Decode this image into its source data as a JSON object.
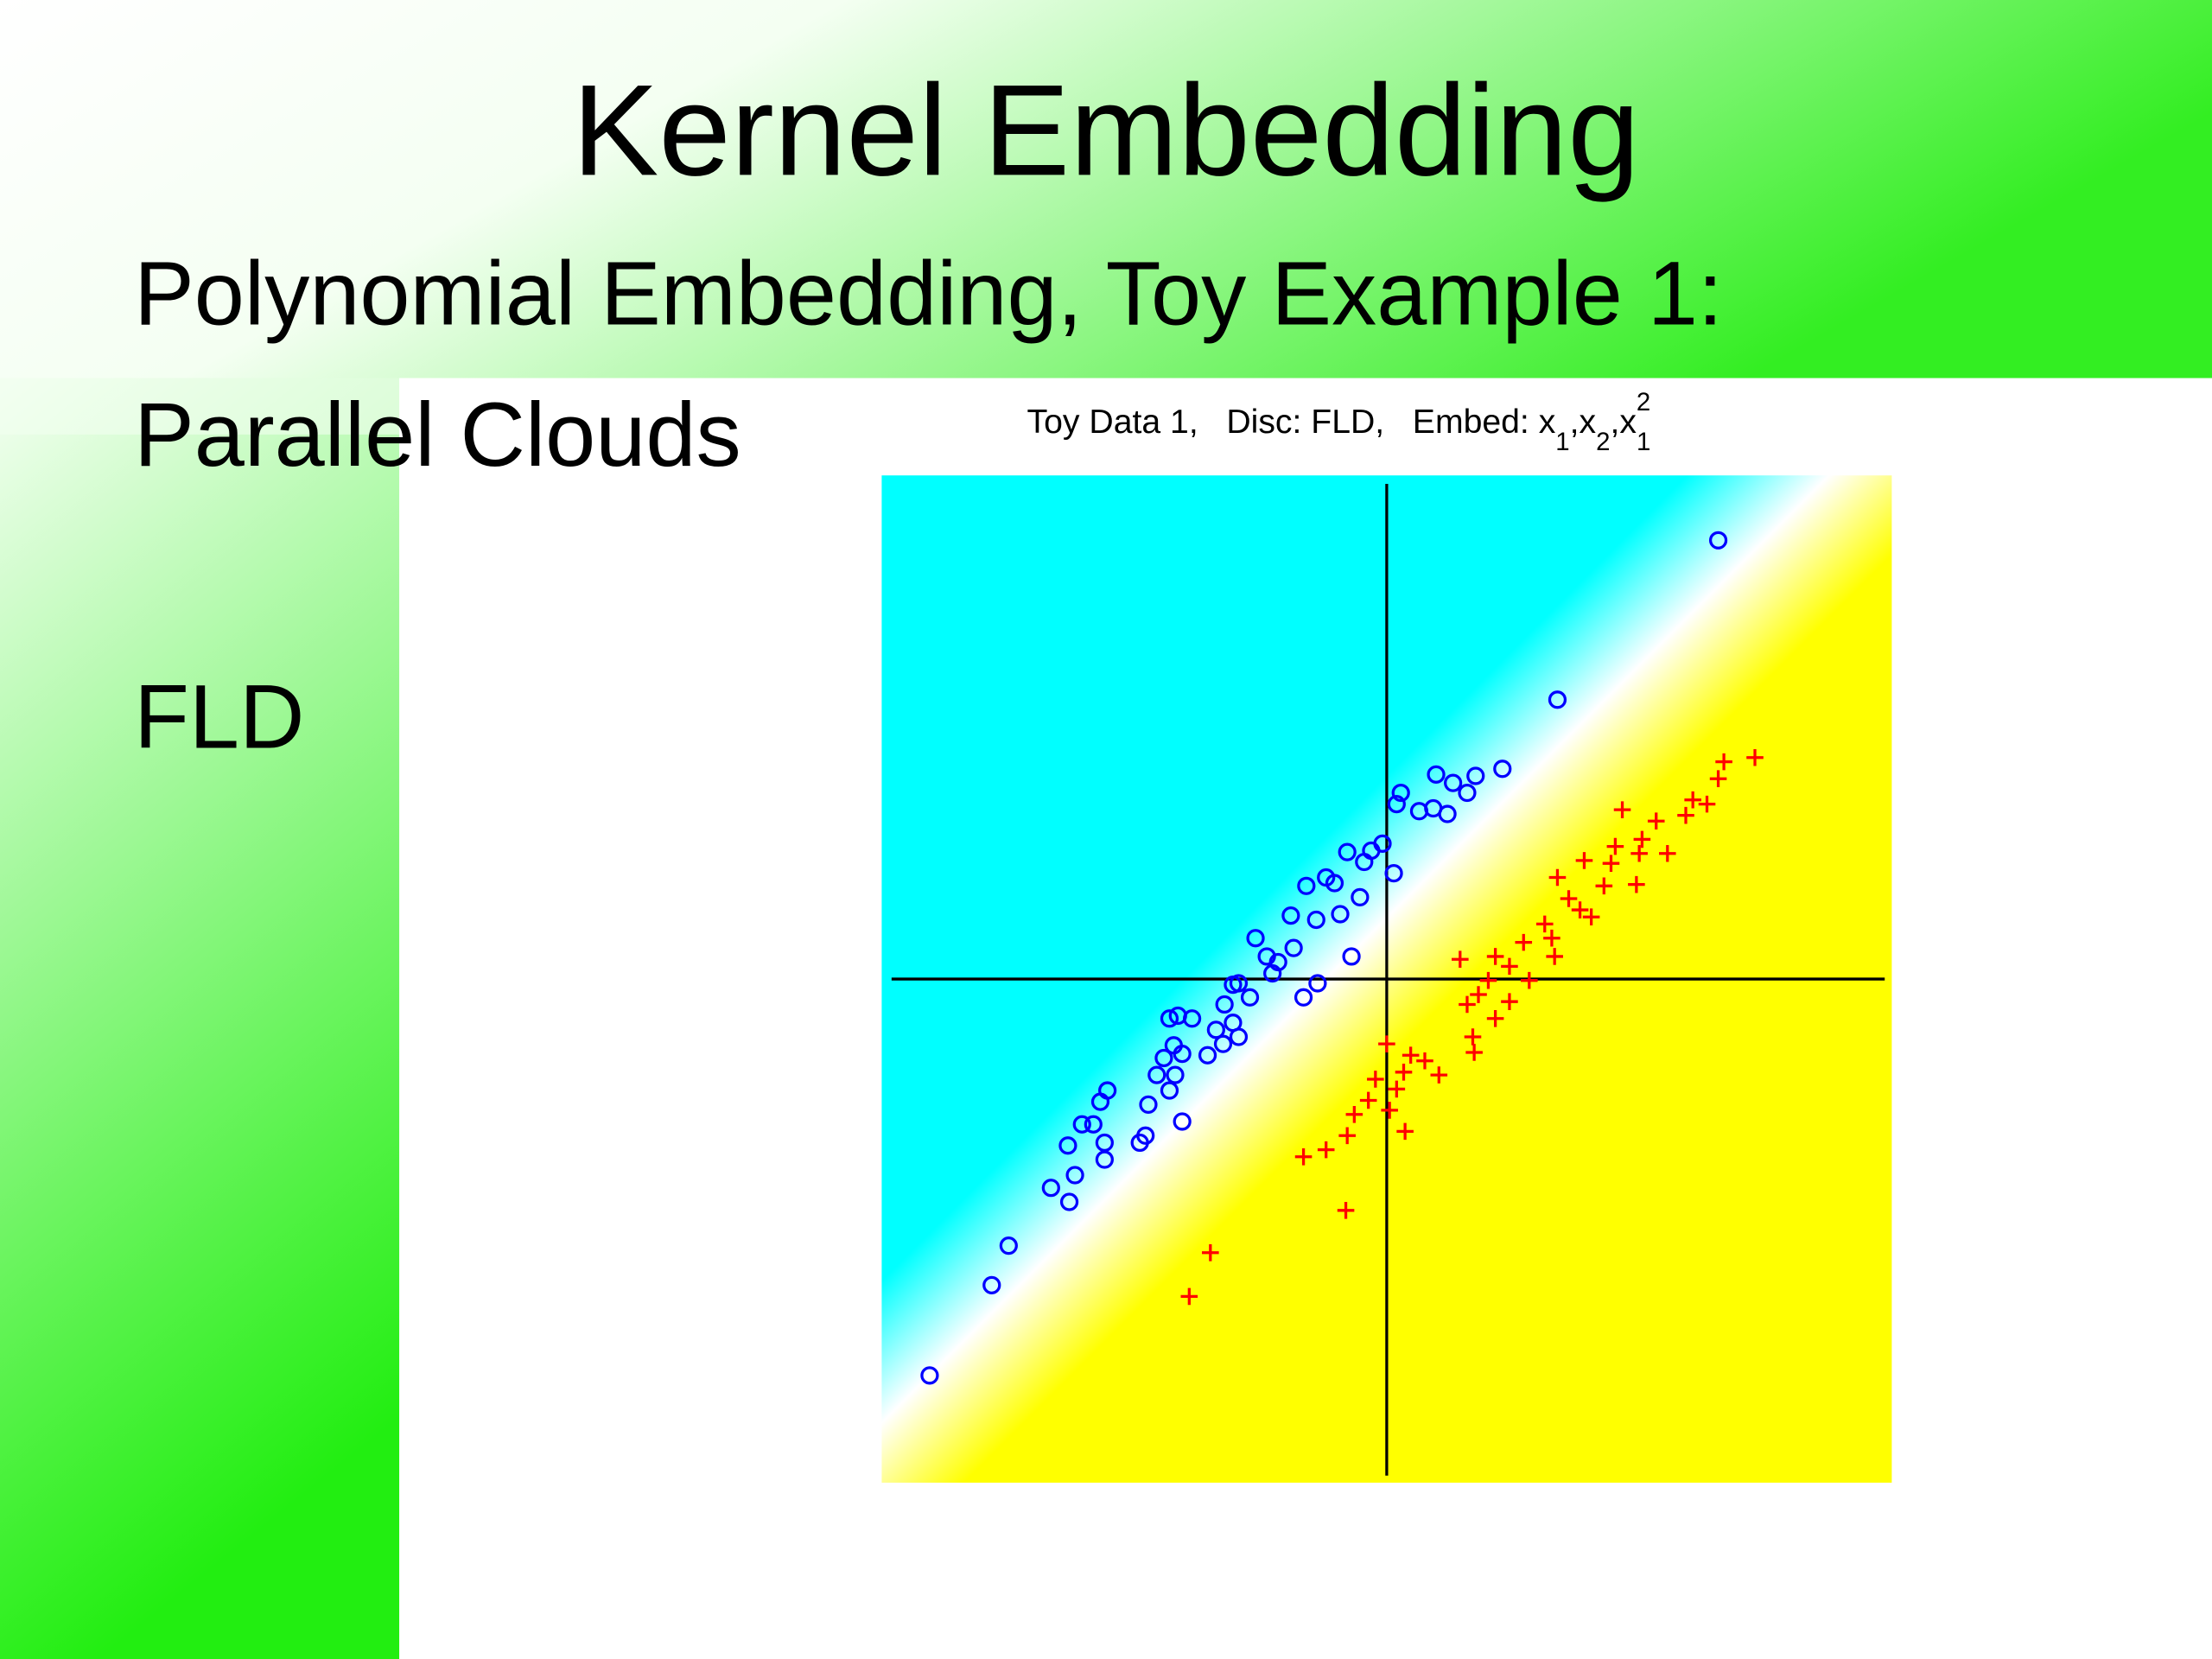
{
  "slide": {
    "title": "Kernel Embedding",
    "lines": [
      "Polynomial Embedding, Toy Example 1:",
      "Parallel Clouds",
      "FLD"
    ]
  },
  "chart_data": {
    "type": "scatter",
    "title_parts": [
      "Toy Data 1,   Disc: FLD,   Embed: x",
      "1",
      ",x",
      "2",
      ",x",
      "2",
      "1"
    ],
    "xlim": [
      -358,
      358
    ],
    "ylim": [
      -357,
      357
    ],
    "zero_axes": true,
    "series": [
      {
        "color": "#0000ff",
        "marker": "o",
        "x": [
          235,
          121,
          82,
          63,
          35,
          47,
          57,
          10,
          7,
          23,
          43,
          33,
          -3,
          -11,
          -28,
          -16,
          5,
          -43,
          -37,
          -57,
          -19,
          -33,
          -50,
          -68,
          -93,
          -85,
          -77,
          -66,
          -81,
          -105,
          -109,
          -49,
          -59,
          -97,
          -25,
          -115,
          -148,
          -154,
          -138,
          -109,
          -105,
          -121,
          -116,
          -151,
          -145,
          -158,
          -127,
          -163,
          -150,
          -154,
          -169,
          -198,
          -203,
          -216,
          -208,
          -145,
          -171,
          -175,
          -200,
          -226,
          -200,
          -221,
          -238,
          -225,
          -268,
          -280,
          -324
        ],
        "y": [
          311,
          198,
          149,
          144,
          145,
          139,
          132,
          132,
          124,
          119,
          117,
          121,
          96,
          91,
          90,
          83,
          75,
          72,
          68,
          66,
          58,
          46,
          42,
          45,
          29,
          16,
          12,
          22,
          4,
          -3,
          -4,
          -3,
          -13,
          -13,
          16,
          -18,
          -26,
          -28,
          -28,
          -31,
          -41,
          -36,
          -46,
          -47,
          -53,
          -56,
          -54,
          -68,
          -68,
          -79,
          -89,
          -79,
          -87,
          -103,
          -103,
          -101,
          -111,
          -116,
          -116,
          -118,
          -128,
          -139,
          -148,
          -158,
          -189,
          -217,
          -281
        ]
      },
      {
        "color": "#ff0000",
        "marker": "+",
        "x": [
          261,
          239,
          235,
          217,
          227,
          212,
          167,
          191,
          181,
          162,
          179,
          199,
          140,
          159,
          121,
          177,
          154,
          129,
          137,
          145,
          112,
          117,
          97,
          77,
          52,
          119,
          87,
          72,
          101,
          65,
          87,
          57,
          77,
          61,
          0,
          62,
          17,
          27,
          37,
          12,
          -8,
          7,
          -13,
          2,
          -23,
          13,
          -28,
          -43,
          -59,
          -29,
          -125,
          -140
        ],
        "y": [
          157,
          154,
          142,
          127,
          124,
          116,
          120,
          112,
          99,
          94,
          89,
          89,
          84,
          82,
          72,
          67,
          66,
          57,
          49,
          44,
          39,
          29,
          26,
          16,
          14,
          16,
          9,
          -1,
          -1,
          -11,
          -16,
          -18,
          -28,
          -41,
          -46,
          -52,
          -54,
          -58,
          -68,
          -66,
          -71,
          -78,
          -86,
          -93,
          -96,
          -108,
          -111,
          -121,
          -126,
          -164,
          -194,
          -225
        ]
      }
    ]
  }
}
